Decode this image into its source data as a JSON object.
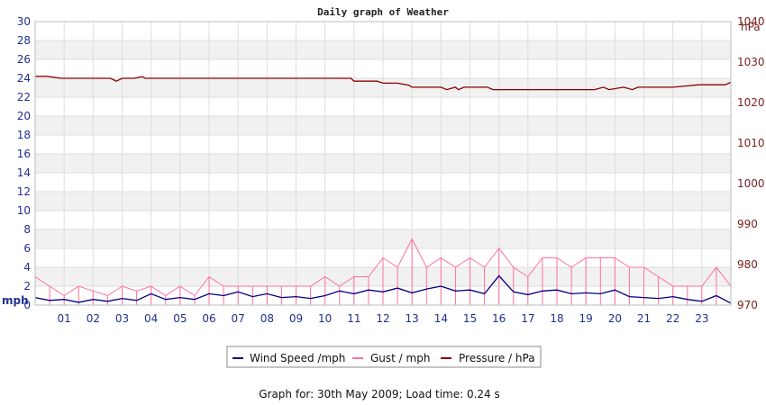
{
  "chart_data": {
    "type": "line",
    "title": "Daily graph of Weather",
    "left_unit": "mph",
    "right_unit": "hPa",
    "ylim_left": [
      0,
      30
    ],
    "yticks_left": [
      0,
      2,
      4,
      6,
      8,
      10,
      12,
      14,
      16,
      18,
      20,
      22,
      24,
      26,
      28,
      30
    ],
    "ylim_right": [
      970,
      1040
    ],
    "yticks_right": [
      970,
      980,
      990,
      1000,
      1010,
      1020,
      1030,
      1040
    ],
    "xlim": [
      0,
      24
    ],
    "xticks": [
      "01",
      "02",
      "03",
      "04",
      "05",
      "06",
      "07",
      "08",
      "09",
      "10",
      "11",
      "12",
      "13",
      "14",
      "15",
      "16",
      "17",
      "18",
      "19",
      "20",
      "21",
      "22",
      "23"
    ],
    "grid": true,
    "legend_position": "bottom",
    "series": [
      {
        "name": "Wind Speed /mph",
        "axis": "left",
        "color": "#00007f",
        "x": [
          0,
          0.5,
          1,
          1.5,
          2,
          2.5,
          3,
          3.5,
          4,
          4.5,
          5,
          5.5,
          6,
          6.5,
          7,
          7.5,
          8,
          8.5,
          9,
          9.5,
          10,
          10.5,
          11,
          11.5,
          12,
          12.5,
          13,
          13.5,
          14,
          14.5,
          15,
          15.5,
          16,
          16.5,
          17,
          17.5,
          18,
          18.5,
          19,
          19.5,
          20,
          20.5,
          21,
          21.5,
          22,
          22.5,
          23,
          23.5,
          24
        ],
        "values": [
          0.8,
          0.5,
          0.6,
          0.3,
          0.6,
          0.4,
          0.7,
          0.5,
          1.2,
          0.6,
          0.8,
          0.6,
          1.2,
          1.0,
          1.4,
          0.9,
          1.2,
          0.8,
          0.9,
          0.7,
          1.0,
          1.5,
          1.2,
          1.6,
          1.4,
          1.8,
          1.3,
          1.7,
          2.0,
          1.5,
          1.6,
          1.2,
          3.1,
          1.4,
          1.1,
          1.5,
          1.6,
          1.2,
          1.3,
          1.2,
          1.6,
          0.9,
          0.8,
          0.7,
          0.9,
          0.6,
          0.4,
          1.0,
          0.2
        ]
      },
      {
        "name": "Gust / mph",
        "axis": "left",
        "color": "#ff6fa0",
        "x": [
          0,
          0.5,
          1,
          1.5,
          2,
          2.5,
          3,
          3.5,
          4,
          4.5,
          5,
          5.5,
          6,
          6.5,
          7,
          7.5,
          8,
          8.5,
          9,
          9.5,
          10,
          10.5,
          11,
          11.5,
          12,
          12.5,
          13,
          13.5,
          14,
          14.5,
          15,
          15.5,
          16,
          16.5,
          17,
          17.5,
          18,
          18.5,
          19,
          19.5,
          20,
          20.5,
          21,
          21.5,
          22,
          22.5,
          23,
          23.5,
          24
        ],
        "values": [
          3.0,
          2.0,
          1.0,
          2.0,
          1.5,
          1.0,
          2.0,
          1.5,
          2.0,
          1.0,
          2.0,
          1.0,
          3.0,
          2.0,
          2.0,
          2.0,
          2.0,
          2.0,
          2.0,
          2.0,
          3.0,
          2.0,
          3.0,
          3.0,
          5.0,
          4.0,
          7.0,
          4.0,
          5.0,
          4.0,
          5.0,
          4.0,
          6.0,
          4.0,
          3.0,
          5.0,
          5.0,
          4.0,
          5.0,
          5.0,
          5.0,
          4.0,
          4.0,
          3.0,
          2.0,
          2.0,
          2.0,
          4.0,
          2.0
        ]
      },
      {
        "name": "Pressure / hPa",
        "axis": "right",
        "color": "#8b0000",
        "x": [
          0,
          0.4,
          0.9,
          2.6,
          2.8,
          3.0,
          3.4,
          3.7,
          3.8,
          4.0,
          6.0,
          8.0,
          10.0,
          10.9,
          11.0,
          11.8,
          12.0,
          12.5,
          12.9,
          13.0,
          13.3,
          14.0,
          14.2,
          14.5,
          14.6,
          14.8,
          15.0,
          15.6,
          15.8,
          16.6,
          18.0,
          19.3,
          19.6,
          19.8,
          20.3,
          20.6,
          20.8,
          21.5,
          22.0,
          22.9,
          23.8,
          24.0
        ],
        "values": [
          1026.5,
          1026.5,
          1026.0,
          1026.0,
          1025.3,
          1026.0,
          1026.0,
          1026.4,
          1026.0,
          1026.0,
          1026.0,
          1026.0,
          1026.0,
          1026.0,
          1025.3,
          1025.3,
          1024.8,
          1024.8,
          1024.3,
          1023.8,
          1023.8,
          1023.8,
          1023.2,
          1023.8,
          1023.2,
          1023.8,
          1023.8,
          1023.8,
          1023.2,
          1023.2,
          1023.2,
          1023.2,
          1023.8,
          1023.2,
          1023.8,
          1023.2,
          1023.8,
          1023.8,
          1023.8,
          1024.4,
          1024.4,
          1025.0
        ]
      }
    ]
  },
  "footer": "Graph for: 30th May 2009; Load time: 0.24 s"
}
